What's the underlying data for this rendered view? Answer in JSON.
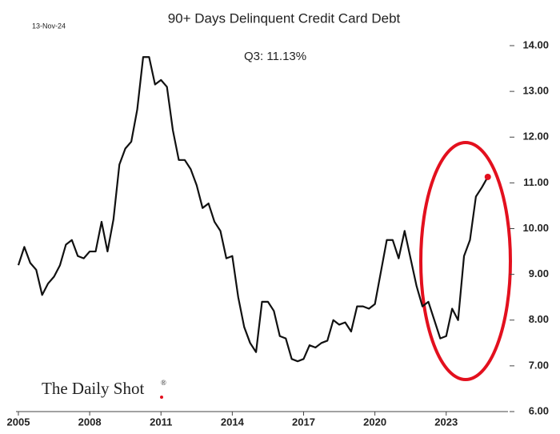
{
  "chart_data": {
    "type": "line",
    "title": "90+ Days Delinquent Credit Card Debt",
    "date": "13-Nov-24",
    "annotation": "Q3:   11.13%",
    "source": "The Daily Shot",
    "x": [
      2005,
      2005.25,
      2005.5,
      2005.75,
      2006,
      2006.25,
      2006.5,
      2006.75,
      2007,
      2007.25,
      2007.5,
      2007.75,
      2008,
      2008.25,
      2008.5,
      2008.75,
      2009,
      2009.25,
      2009.5,
      2009.75,
      2010,
      2010.25,
      2010.5,
      2010.75,
      2011,
      2011.25,
      2011.5,
      2011.75,
      2012,
      2012.25,
      2012.5,
      2012.75,
      2013,
      2013.25,
      2013.5,
      2013.75,
      2014,
      2014.25,
      2014.5,
      2014.75,
      2015,
      2015.25,
      2015.5,
      2015.75,
      2016,
      2016.25,
      2016.5,
      2016.75,
      2017,
      2017.25,
      2017.5,
      2017.75,
      2018,
      2018.25,
      2018.5,
      2018.75,
      2019,
      2019.25,
      2019.5,
      2019.75,
      2020,
      2020.25,
      2020.5,
      2020.75,
      2021,
      2021.25,
      2021.5,
      2021.75,
      2022,
      2022.25,
      2022.5,
      2022.75,
      2023,
      2023.25,
      2023.5,
      2023.75,
      2024,
      2024.25,
      2024.5,
      2024.75
    ],
    "series": [
      {
        "name": "90+ Days Delinquent",
        "color": "#111111",
        "values": [
          9.2,
          9.6,
          9.25,
          9.1,
          8.55,
          8.8,
          8.95,
          9.2,
          9.65,
          9.75,
          9.4,
          9.35,
          9.5,
          9.5,
          10.15,
          9.5,
          10.2,
          11.4,
          11.75,
          11.9,
          12.6,
          13.75,
          13.75,
          13.15,
          13.25,
          13.1,
          12.15,
          11.5,
          11.5,
          11.3,
          10.95,
          10.45,
          10.55,
          10.15,
          9.95,
          9.35,
          9.4,
          8.5,
          7.85,
          7.5,
          7.3,
          8.4,
          8.4,
          8.2,
          7.65,
          7.6,
          7.15,
          7.1,
          7.15,
          7.45,
          7.4,
          7.5,
          7.55,
          8.0,
          7.9,
          7.95,
          7.75,
          8.3,
          8.3,
          8.25,
          8.35,
          9.05,
          9.75,
          9.75,
          9.35,
          9.95,
          9.35,
          8.75,
          8.3,
          8.4,
          8.0,
          7.6,
          7.65,
          8.25,
          8.0,
          9.4,
          9.75,
          10.7,
          10.9,
          11.13
        ]
      }
    ],
    "highlight_color": "#e3101e",
    "xlim": [
      2004.9,
      2025.6
    ],
    "xticks": [
      2005,
      2008,
      2011,
      2014,
      2017,
      2020,
      2023
    ],
    "ylim": [
      6,
      14
    ],
    "yticks": [
      {
        "value": 6,
        "label": "6.00"
      },
      {
        "value": 7,
        "label": "7.00"
      },
      {
        "value": 8,
        "label": "8.00"
      },
      {
        "value": 9,
        "label": "9.00"
      },
      {
        "value": 10,
        "label": "10.00"
      },
      {
        "value": 11,
        "label": "11.00"
      },
      {
        "value": 12,
        "label": "12.00"
      },
      {
        "value": 13,
        "label": "13.00"
      },
      {
        "value": 14,
        "label": "14.00"
      }
    ]
  }
}
